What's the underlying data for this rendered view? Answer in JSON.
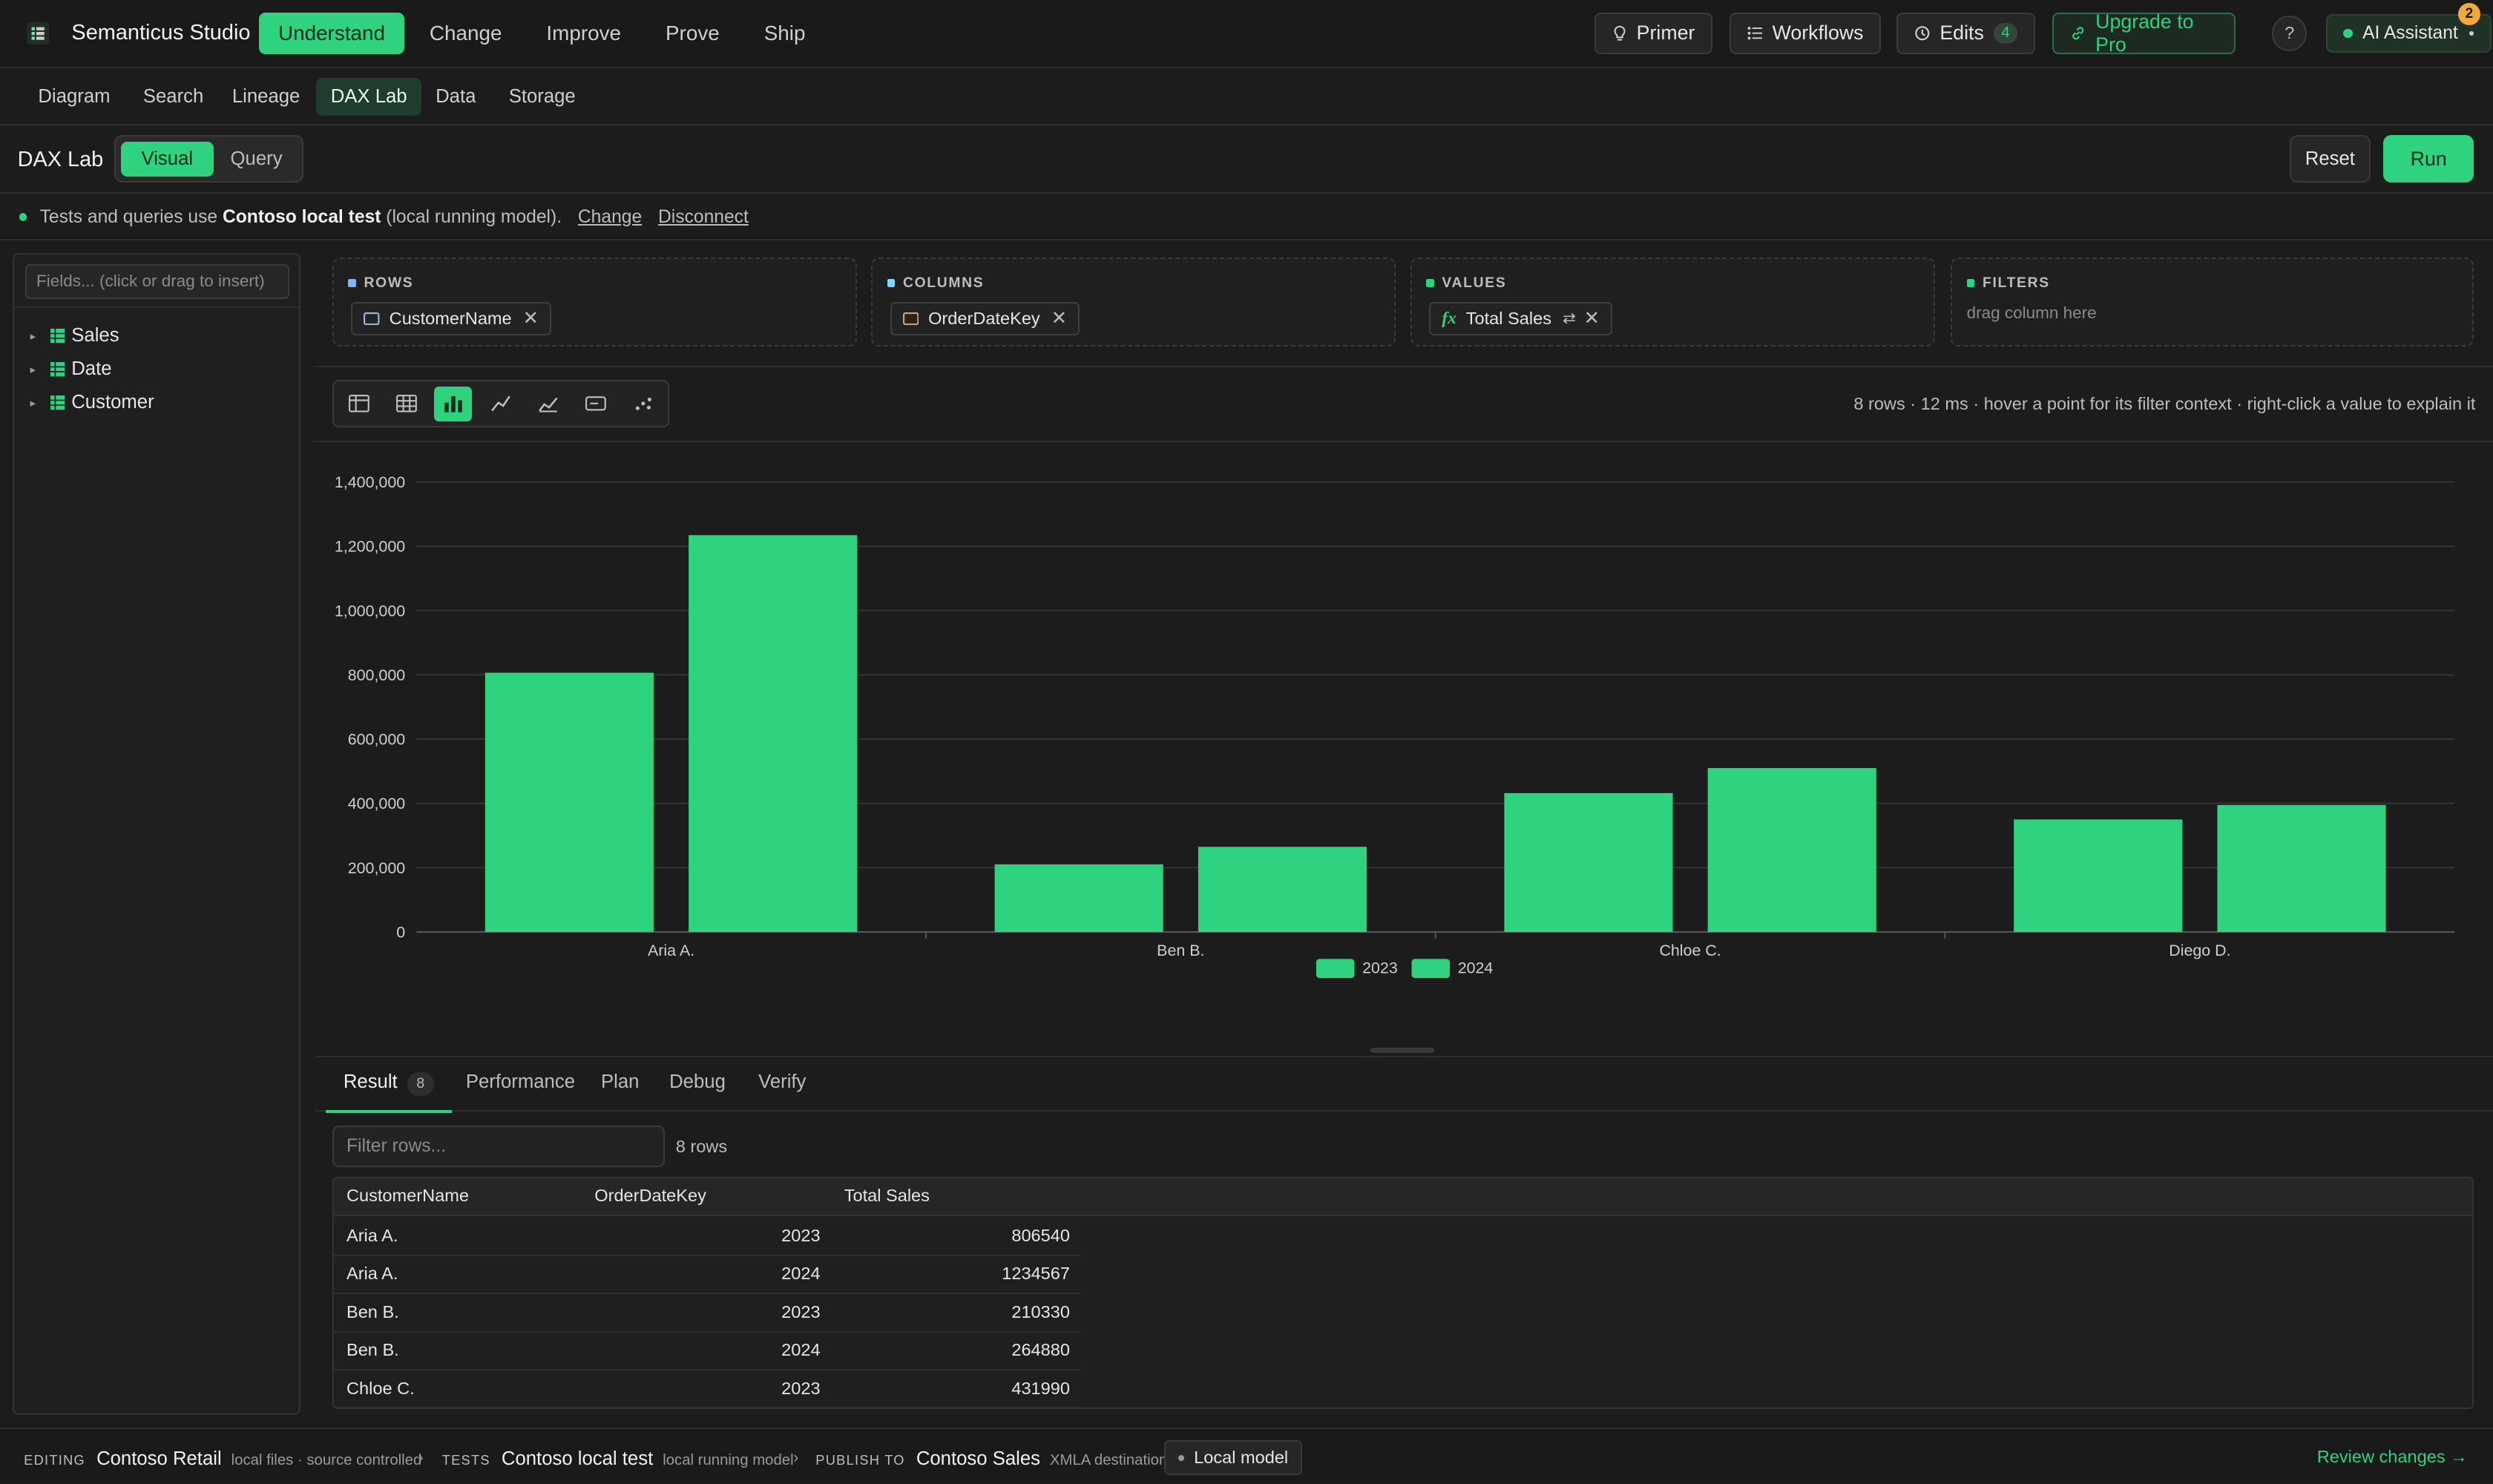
{
  "app": {
    "title": "Semanticus Studio",
    "nav": [
      "Understand",
      "Change",
      "Improve",
      "Prove",
      "Ship"
    ],
    "active_nav": "Understand",
    "buttons": {
      "primer": "Primer",
      "workflows": "Workflows",
      "edits": "Edits",
      "edits_count": "4",
      "upgrade": "Upgrade to Pro",
      "help": "?",
      "ai": "AI Assistant",
      "ai_badge": "2"
    }
  },
  "subnav": {
    "tabs": [
      "Diagram",
      "Search",
      "Lineage",
      "DAX Lab",
      "Data",
      "Storage"
    ],
    "active": "DAX Lab"
  },
  "daxlab": {
    "title": "DAX Lab",
    "modes": [
      "Visual",
      "Query"
    ],
    "active_mode": "Visual",
    "reset": "Reset",
    "run": "Run"
  },
  "info": {
    "prefix": "Tests and queries use",
    "model": "Contoso local test",
    "suffix": "(local running model).",
    "change": "Change",
    "disconnect": "Disconnect"
  },
  "fields": {
    "placeholder": "Fields... (click or drag to insert)",
    "tables": [
      "Sales",
      "Date",
      "Customer"
    ]
  },
  "wells": {
    "rows": {
      "label": "ROWS",
      "chip": "CustomerName"
    },
    "columns": {
      "label": "COLUMNS",
      "chip": "OrderDateKey"
    },
    "values": {
      "label": "VALUES",
      "chip": "Total Sales",
      "fx": "fx"
    },
    "filters": {
      "label": "FILTERS",
      "hint": "drag column here"
    }
  },
  "stats": "8 rows · 12 ms · hover a point for its filter context · right-click a value to explain it",
  "colors": {
    "accent": "#2ed27f"
  },
  "chart_data": {
    "type": "bar",
    "categories": [
      "Aria A.",
      "Ben B.",
      "Chloe C.",
      "Diego D."
    ],
    "series": [
      {
        "name": "2023",
        "values": [
          806540,
          210330,
          431990,
          350000
        ]
      },
      {
        "name": "2024",
        "values": [
          1234567,
          264880,
          510000,
          395000
        ]
      }
    ],
    "ylim": [
      0,
      1400000
    ],
    "yticks": [
      "0",
      "200,000",
      "400,000",
      "600,000",
      "800,000",
      "1,000,000",
      "1,200,000",
      "1,400,000"
    ],
    "legend_position": "bottom-center",
    "grid": true
  },
  "results": {
    "tabs": [
      "Result",
      "Performance",
      "Plan",
      "Debug",
      "Verify"
    ],
    "active_tab": "Result",
    "result_count": "8",
    "filter_placeholder": "Filter rows...",
    "row_count": "8 rows",
    "columns": [
      "CustomerName",
      "OrderDateKey",
      "Total Sales"
    ],
    "rows": [
      [
        "Aria A.",
        "2023",
        "806540"
      ],
      [
        "Aria A.",
        "2024",
        "1234567"
      ],
      [
        "Ben B.",
        "2023",
        "210330"
      ],
      [
        "Ben B.",
        "2024",
        "264880"
      ],
      [
        "Chloe C.",
        "2023",
        "431990"
      ]
    ]
  },
  "footer": {
    "editing_tag": "EDITING",
    "editing_val": "Contoso Retail",
    "editing_sub": "local files · source controlled",
    "tests_tag": "TESTS",
    "tests_val": "Contoso local test",
    "tests_sub": "local running model",
    "publish_tag": "PUBLISH TO",
    "publish_val": "Contoso Sales",
    "publish_sub": "XMLA destination",
    "local_model": "Local model",
    "review": "Review changes →"
  }
}
